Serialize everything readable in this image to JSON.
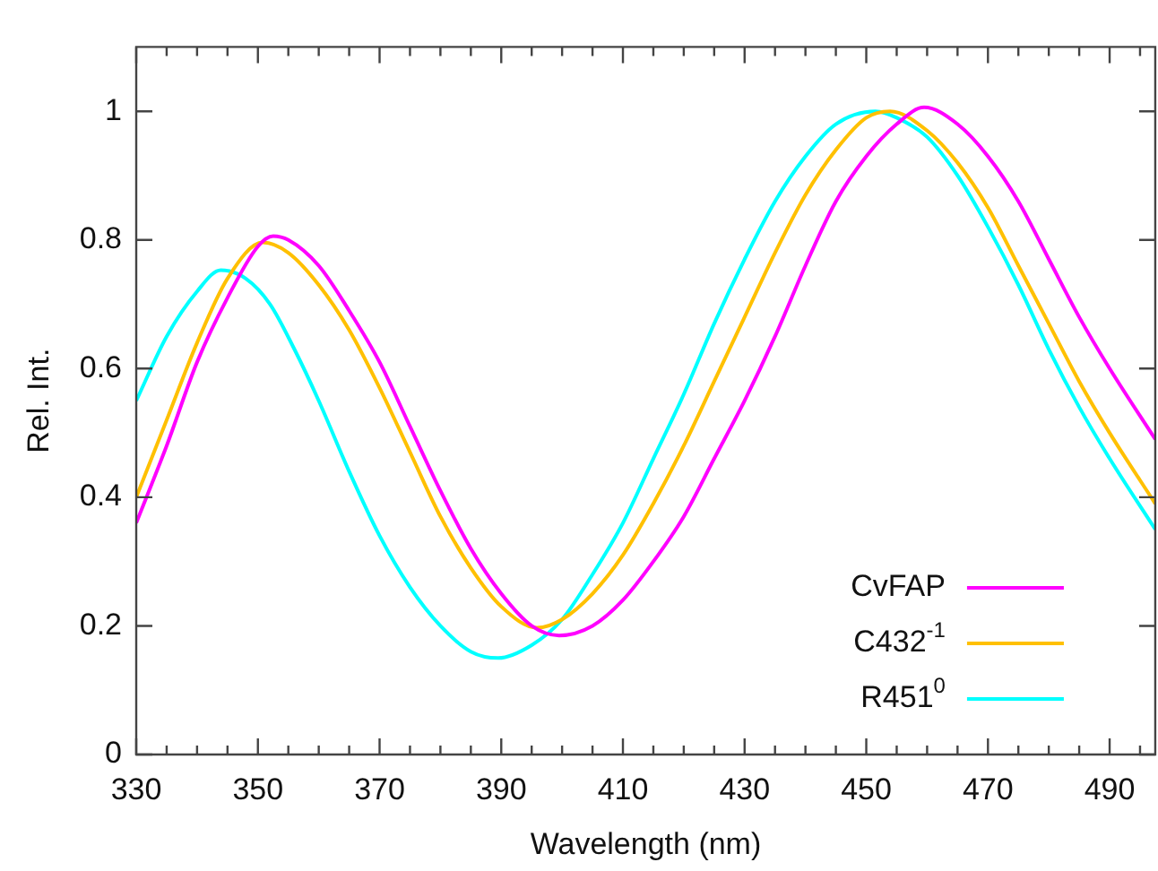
{
  "chart_data": {
    "type": "line",
    "xlabel": "Wavelength (nm)",
    "ylabel": "Rel. Int.",
    "xlim": [
      330,
      497.5
    ],
    "ylim": [
      0,
      1.1
    ],
    "xticks": [
      330,
      {
        "value": 335,
        "label": null
      },
      {
        "value": 340,
        "label": null
      },
      {
        "value": 345,
        "label": null
      },
      350,
      {
        "value": 355,
        "label": null
      },
      {
        "value": 360,
        "label": null
      },
      {
        "value": 365,
        "label": null
      },
      370,
      {
        "value": 375,
        "label": null
      },
      {
        "value": 380,
        "label": null
      },
      {
        "value": 385,
        "label": null
      },
      390,
      {
        "value": 395,
        "label": null
      },
      {
        "value": 400,
        "label": null
      },
      {
        "value": 405,
        "label": null
      },
      410,
      {
        "value": 415,
        "label": null
      },
      {
        "value": 420,
        "label": null
      },
      {
        "value": 425,
        "label": null
      },
      430,
      {
        "value": 435,
        "label": null
      },
      {
        "value": 440,
        "label": null
      },
      {
        "value": 445,
        "label": null
      },
      450,
      {
        "value": 455,
        "label": null
      },
      {
        "value": 460,
        "label": null
      },
      {
        "value": 465,
        "label": null
      },
      470,
      {
        "value": 475,
        "label": null
      },
      {
        "value": 480,
        "label": null
      },
      {
        "value": 485,
        "label": null
      },
      490,
      {
        "value": 495,
        "label": null
      }
    ],
    "yticks": [
      0,
      0.2,
      0.4,
      0.6,
      0.8,
      1
    ],
    "grid": false,
    "legend": "bottom right",
    "marker": "none",
    "line_style": "solid",
    "series": [
      {
        "name": "CvFAP",
        "color": "#ff00ff",
        "x": [
          330,
          335,
          340,
          345,
          350,
          352.5,
          355,
          360,
          365,
          370,
          375,
          380,
          385,
          390,
          395,
          399.5,
          405,
          410,
          415,
          420,
          425,
          430,
          435,
          440,
          445,
          450,
          455,
          459.5,
          465,
          470,
          475,
          480,
          485,
          490,
          497.5
        ],
        "values": [
          0.36,
          0.48,
          0.61,
          0.71,
          0.79,
          0.806,
          0.8,
          0.76,
          0.69,
          0.61,
          0.51,
          0.41,
          0.32,
          0.25,
          0.2,
          0.185,
          0.2,
          0.24,
          0.3,
          0.37,
          0.46,
          0.55,
          0.65,
          0.76,
          0.86,
          0.93,
          0.98,
          1.006,
          0.98,
          0.93,
          0.86,
          0.77,
          0.68,
          0.6,
          0.49
        ]
      },
      {
        "name": "C432$^{-1}$",
        "color": "#ffc000",
        "x": [
          330,
          335,
          340,
          345,
          350.8,
          355,
          360,
          365,
          370,
          375,
          380,
          385,
          390,
          395.9,
          400,
          405,
          410,
          415,
          420,
          425,
          430,
          435,
          440,
          445,
          450,
          453.9,
          460,
          465,
          470,
          475,
          480,
          485,
          490,
          497.5
        ],
        "values": [
          0.4,
          0.52,
          0.64,
          0.74,
          0.796,
          0.78,
          0.73,
          0.66,
          0.57,
          0.47,
          0.37,
          0.29,
          0.23,
          0.197,
          0.21,
          0.25,
          0.31,
          0.39,
          0.48,
          0.58,
          0.68,
          0.78,
          0.87,
          0.94,
          0.99,
          1.0,
          0.97,
          0.92,
          0.85,
          0.76,
          0.67,
          0.58,
          0.5,
          0.39
        ]
      },
      {
        "name": "R451$^{0}$",
        "color": "#00ffff",
        "x": [
          330,
          335,
          340,
          343.9,
          348,
          352,
          356,
          360,
          365,
          370,
          375,
          380,
          385,
          389.5,
          395,
          400,
          405,
          410,
          415,
          420,
          425,
          430,
          435,
          440,
          445,
          451.5,
          455,
          460,
          465,
          470,
          475,
          480,
          485,
          490,
          497.5
        ],
        "values": [
          0.55,
          0.65,
          0.72,
          0.753,
          0.74,
          0.7,
          0.63,
          0.55,
          0.44,
          0.34,
          0.26,
          0.2,
          0.16,
          0.15,
          0.17,
          0.21,
          0.28,
          0.36,
          0.46,
          0.56,
          0.67,
          0.77,
          0.86,
          0.93,
          0.98,
          1.0,
          0.99,
          0.96,
          0.9,
          0.82,
          0.73,
          0.63,
          0.54,
          0.46,
          0.35
        ]
      }
    ]
  }
}
